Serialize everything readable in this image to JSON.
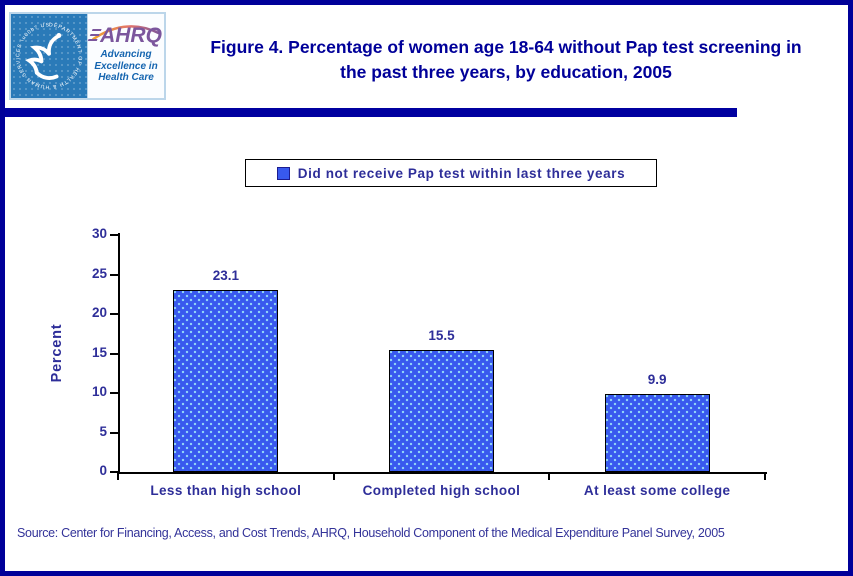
{
  "header": {
    "title": "Figure 4. Percentage of women age 18-64 without Pap test screening in the past three years, by education, 2005",
    "logo": {
      "brand": "AHRQ",
      "seal_ring_text": "DEPARTMENT OF HEALTH & HUMAN SERVICES · USA ·",
      "tagline_line1": "Advancing",
      "tagline_line2": "Excellence in",
      "tagline_line3": "Health Care"
    }
  },
  "legend": {
    "label": "Did not receive Pap test within last three years"
  },
  "chart_data": {
    "type": "bar",
    "title": "Figure 4. Percentage of women age 18-64 without Pap test screening in the past three years, by education, 2005",
    "categories": [
      "Less than high school",
      "Completed high school",
      "At least some college"
    ],
    "series": [
      {
        "name": "Did not receive Pap test within last three years",
        "values": [
          23.1,
          15.5,
          9.9
        ]
      }
    ],
    "value_labels": [
      "23.1",
      "15.5",
      "9.9"
    ],
    "xlabel": "",
    "ylabel": "Percent",
    "ylim": [
      0,
      30
    ],
    "yticks": [
      0,
      5,
      10,
      15,
      20,
      25,
      30
    ],
    "grid": false,
    "legend_position": "top-center",
    "bar_fill_color": "#3859ee",
    "bar_dot_color": "#96dcf8",
    "bar_border_color": "#000000"
  },
  "source": {
    "text": "Source: Center for Financing, Access, and Cost Trends, AHRQ, Household Component of the Medical Expenditure Panel Survey, 2005"
  },
  "colors": {
    "frame_border": "#000099",
    "title_text": "#000099",
    "label_text": "#2e2e99",
    "divider": "#0000a0",
    "seal_background": "#2a7ab8",
    "ahrq_purple": "#7b569d",
    "tagline_blue": "#1565b0"
  }
}
